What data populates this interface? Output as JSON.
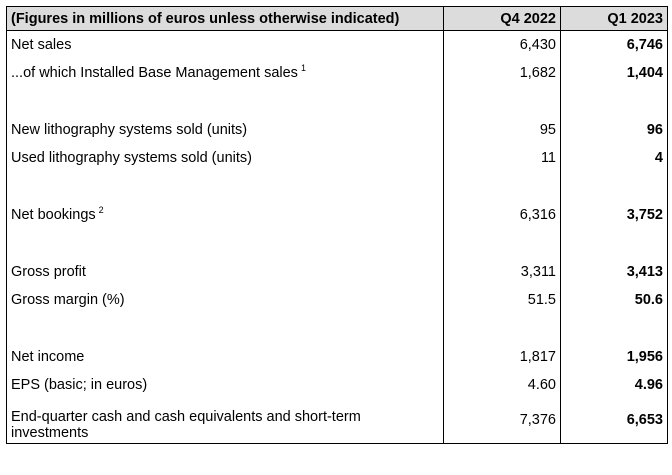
{
  "header": {
    "label": "(Figures in millions of euros unless otherwise indicated)",
    "col_prev": "Q4 2022",
    "col_curr": "Q1 2023"
  },
  "rows": [
    {
      "label": "Net sales",
      "prev": "6,430",
      "curr": "6,746"
    },
    {
      "label": "...of which Installed Base Management sales",
      "note": "1",
      "prev": "1,682",
      "curr": "1,404"
    },
    {
      "label": "New lithography systems sold (units)",
      "prev": "95",
      "curr": "96"
    },
    {
      "label": "Used lithography systems sold (units)",
      "prev": "11",
      "curr": "4"
    },
    {
      "label": "Net bookings",
      "note": "2",
      "prev": "6,316",
      "curr": "3,752"
    },
    {
      "label": "Gross profit",
      "prev": "3,311",
      "curr": "3,413"
    },
    {
      "label": "Gross margin (%)",
      "prev": "51.5",
      "curr": "50.6"
    },
    {
      "label": "Net income",
      "prev": "1,817",
      "curr": "1,956"
    },
    {
      "label": "EPS (basic; in euros)",
      "prev": "4.60",
      "curr": "4.96"
    },
    {
      "label": "End-quarter cash and cash equivalents and short-term investments",
      "prev": "7,376",
      "curr": "6,653"
    }
  ]
}
